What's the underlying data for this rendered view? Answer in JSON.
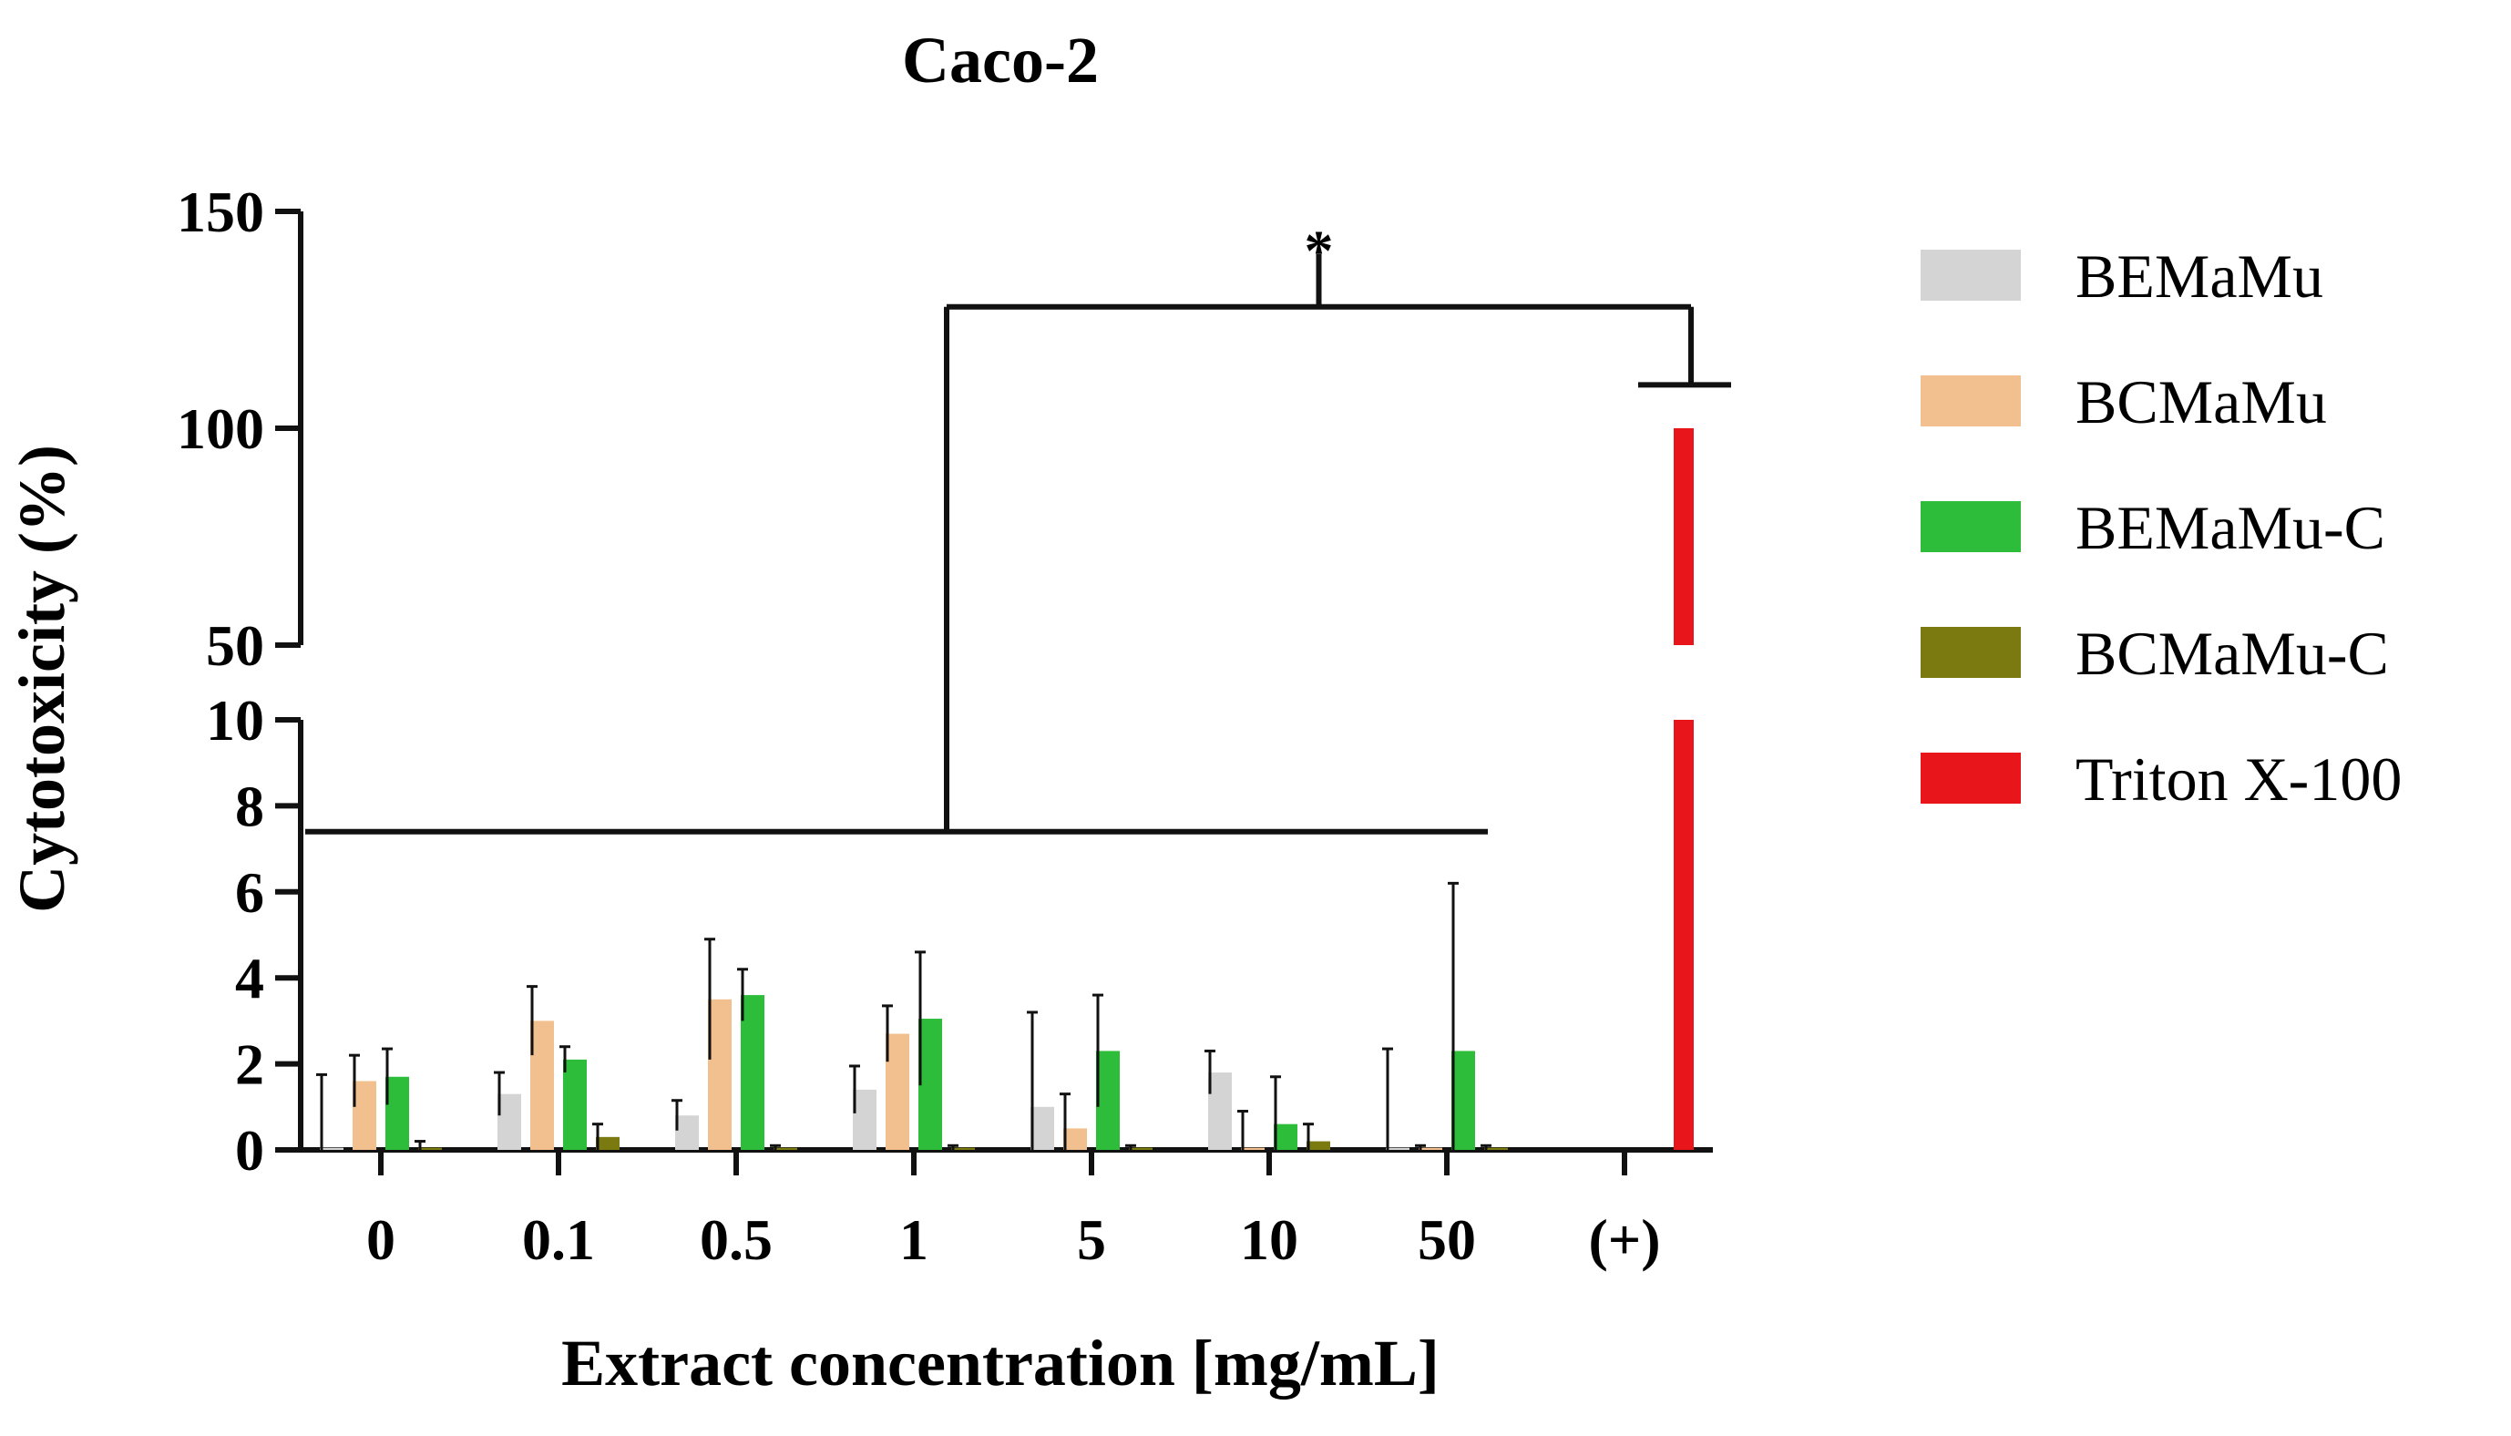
{
  "chart_data": {
    "type": "bar",
    "title": "Caco-2",
    "xlabel": "Extract concentration [mg/mL]",
    "ylabel": "Cytotoxicity (%)",
    "categories": [
      "0",
      "0.1",
      "0.5",
      "1",
      "5",
      "10",
      "50",
      "(+)"
    ],
    "y_axis_lower": {
      "range": [
        0,
        10
      ],
      "ticks": [
        "0",
        "2",
        "4",
        "6",
        "8",
        "10"
      ]
    },
    "y_axis_upper": {
      "range": [
        50,
        150
      ],
      "ticks": [
        "50",
        "100",
        "150"
      ]
    },
    "series": [
      {
        "name": "BEMaMu",
        "color": "#d4d4d4",
        "values": [
          0.05,
          1.3,
          0.8,
          1.4,
          1.0,
          1.8,
          0.05,
          null
        ],
        "errors": [
          1.7,
          0.5,
          0.35,
          0.55,
          2.2,
          0.5,
          2.3,
          null
        ]
      },
      {
        "name": "BCMaMu",
        "color": "#f2c08e",
        "values": [
          1.6,
          3.0,
          3.5,
          2.7,
          0.5,
          0.05,
          0.05,
          null
        ],
        "errors": [
          0.6,
          0.8,
          1.4,
          0.65,
          0.8,
          0.85,
          0.05,
          null
        ]
      },
      {
        "name": "BEMaMu-C",
        "color": "#2ebd3a",
        "values": [
          1.7,
          2.1,
          3.6,
          3.05,
          2.3,
          0.6,
          2.3,
          null
        ],
        "errors": [
          0.65,
          0.3,
          0.6,
          1.55,
          1.3,
          1.1,
          3.9,
          null
        ]
      },
      {
        "name": "BCMaMu-C",
        "color": "#7a7a10",
        "values": [
          0.05,
          0.3,
          0.05,
          0.05,
          0.05,
          0.2,
          0.05,
          null
        ],
        "errors": [
          0.15,
          0.3,
          0.05,
          0.05,
          0.05,
          0.4,
          0.05,
          null
        ]
      },
      {
        "name": "Triton X-100",
        "color": "#e8151b",
        "values": [
          null,
          null,
          null,
          null,
          null,
          null,
          null,
          100
        ],
        "errors": [
          null,
          null,
          null,
          null,
          null,
          null,
          null,
          0
        ]
      }
    ],
    "significance": {
      "label": "*",
      "bracket_y_lower": 7.4,
      "bracket_y_upper": 128,
      "from_categories": [
        "0",
        "50"
      ],
      "to_category": "(+)"
    },
    "legend_position": "right"
  }
}
